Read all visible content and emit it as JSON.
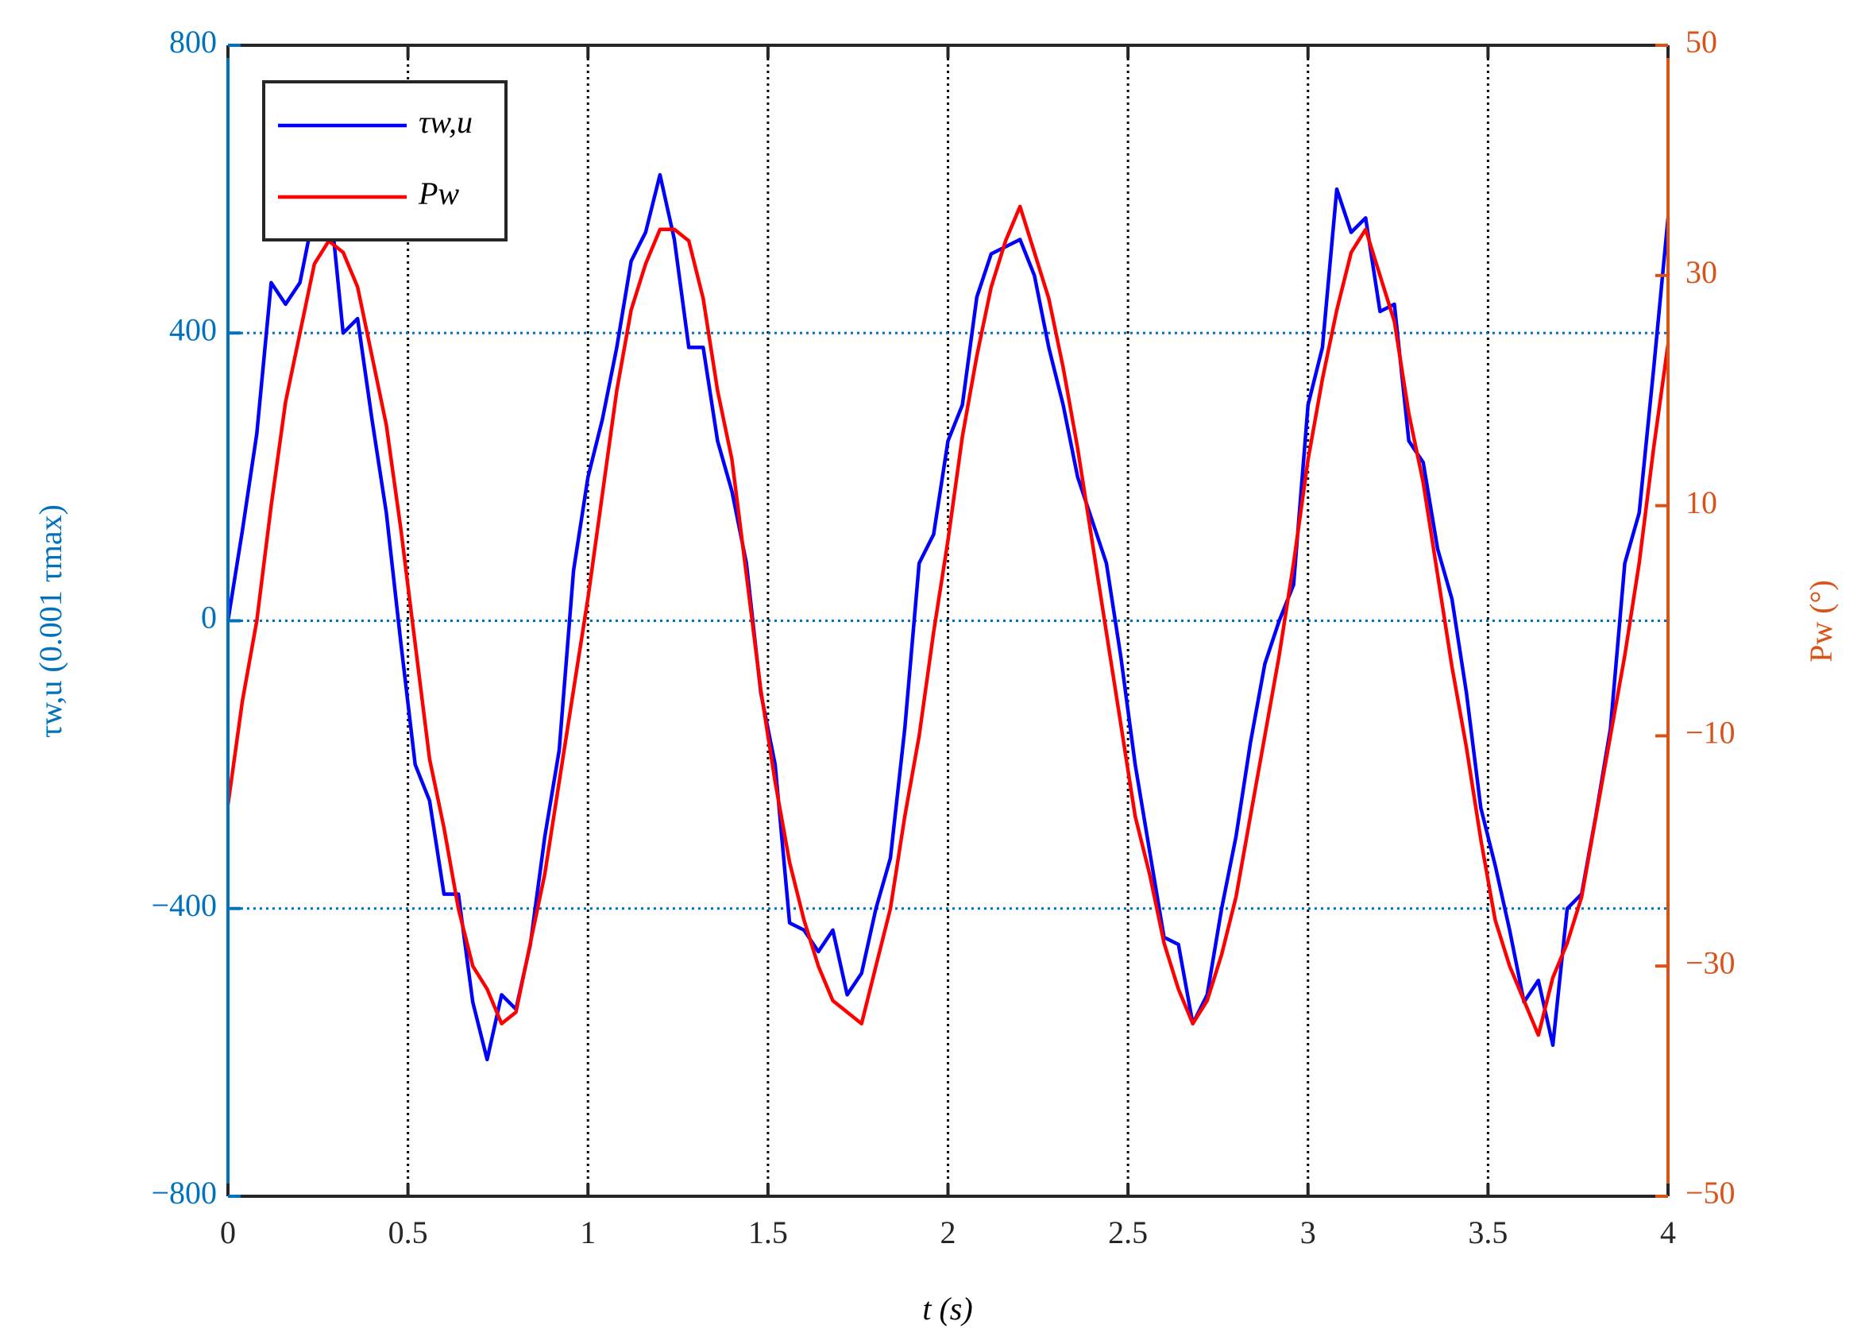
{
  "chart_data": {
    "type": "line",
    "xlabel": "t (s)",
    "ylabel": "τw,u (0.001 τmax)",
    "y2label": "Pw (°)",
    "x": [
      0,
      0.04,
      0.08,
      0.12,
      0.16,
      0.2,
      0.24,
      0.28,
      0.32,
      0.36,
      0.4,
      0.44,
      0.48,
      0.52,
      0.56,
      0.6,
      0.64,
      0.68,
      0.72,
      0.76,
      0.8,
      0.84,
      0.88,
      0.92,
      0.96,
      1,
      1.04,
      1.08,
      1.12,
      1.16,
      1.2,
      1.24,
      1.28,
      1.32,
      1.36,
      1.4,
      1.44,
      1.48,
      1.52,
      1.56,
      1.6,
      1.64,
      1.68,
      1.72,
      1.76,
      1.8,
      1.84,
      1.88,
      1.92,
      1.96,
      2,
      2.04,
      2.08,
      2.12,
      2.16,
      2.2,
      2.24,
      2.28,
      2.32,
      2.36,
      2.4,
      2.44,
      2.48,
      2.52,
      2.56,
      2.6,
      2.64,
      2.68,
      2.72,
      2.76,
      2.8,
      2.84,
      2.88,
      2.92,
      2.96,
      3,
      3.04,
      3.08,
      3.12,
      3.16,
      3.2,
      3.24,
      3.28,
      3.32,
      3.36,
      3.4,
      3.44,
      3.48,
      3.52,
      3.56,
      3.6,
      3.64,
      3.68,
      3.72,
      3.76,
      3.8,
      3.84,
      3.88,
      3.92,
      3.96,
      4
    ],
    "series": [
      {
        "name": "τw,u",
        "color": "#0000ff",
        "axis": "y",
        "values": [
          0,
          125,
          260,
          470,
          440,
          470,
          570,
          600,
          400,
          420,
          280,
          150,
          -30,
          -200,
          -250,
          -380,
          -380,
          -530,
          -610,
          -520,
          -540,
          -450,
          -300,
          -180,
          70,
          200,
          280,
          380,
          500,
          540,
          620,
          530,
          380,
          380,
          250,
          180,
          80,
          -100,
          -200,
          -420,
          -430,
          -460,
          -430,
          -520,
          -490,
          -400,
          -330,
          -150,
          80,
          120,
          250,
          300,
          450,
          510,
          520,
          530,
          480,
          380,
          300,
          200,
          140,
          80,
          -50,
          -200,
          -320,
          -440,
          -450,
          -560,
          -520,
          -400,
          -300,
          -170,
          -60,
          0,
          50,
          300,
          380,
          600,
          540,
          560,
          430,
          440,
          250,
          220,
          100,
          30,
          -100,
          -260,
          -340,
          -430,
          -530,
          -500,
          -590,
          -400,
          -380,
          -270,
          -150,
          80,
          150,
          350,
          560
        ]
      },
      {
        "name": "Pw",
        "color": "#ff0000",
        "axis": "y2",
        "values": [
          -16,
          -7,
          0,
          10,
          19,
          25,
          31,
          33,
          32,
          29,
          23,
          17,
          8,
          -2,
          -12,
          -18,
          -25,
          -30,
          -32,
          -35,
          -34,
          -28,
          -22,
          -14,
          -6,
          2,
          11,
          20,
          27,
          31,
          34,
          34,
          33,
          28,
          20,
          14,
          4,
          -6,
          -14,
          -21,
          -26,
          -30,
          -33,
          -34,
          -35,
          -30,
          -25,
          -17,
          -10,
          -1,
          7,
          16,
          23,
          29,
          33,
          36,
          32,
          28,
          22,
          15,
          7,
          -1,
          -9,
          -17,
          -22,
          -28,
          -32,
          -35,
          -33,
          -29,
          -24,
          -17,
          -10,
          -3,
          5,
          14,
          21,
          27,
          32,
          34,
          30,
          26,
          18,
          12,
          4,
          -4,
          -11,
          -19,
          -26,
          -30,
          -33,
          -36,
          -31,
          -28,
          -24,
          -17,
          -10,
          -3,
          5,
          15,
          24
        ]
      }
    ],
    "xlim": [
      0,
      4
    ],
    "xticks": [
      0,
      0.5,
      1,
      1.5,
      2,
      2.5,
      3,
      3.5,
      4
    ],
    "ylim": [
      -800,
      800
    ],
    "yticks": [
      {
        "value": -800,
        "label": "−800"
      },
      {
        "value": -400,
        "label": "−400"
      },
      0,
      400,
      800
    ],
    "y2lim": [
      -50,
      50
    ],
    "y2ticks": [
      {
        "value": -50,
        "label": "−50"
      },
      {
        "value": -30,
        "label": "−30"
      },
      {
        "value": -10,
        "label": "−10"
      },
      10,
      30,
      50
    ],
    "xgrid": true,
    "ygrid": true,
    "y_color": "#0072bd",
    "y2_color": "#d95319",
    "legend": "upper left"
  }
}
